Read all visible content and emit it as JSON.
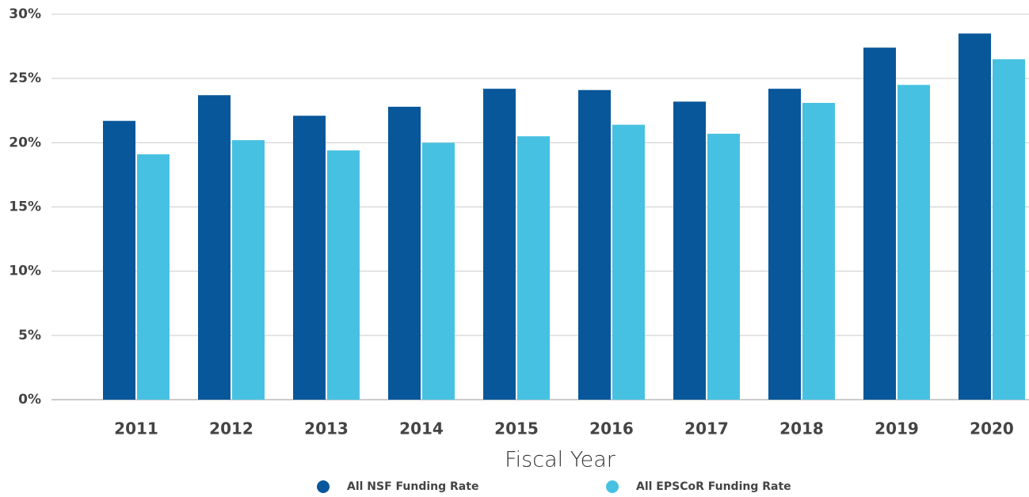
{
  "chart_data": {
    "type": "bar",
    "categories": [
      "2011",
      "2012",
      "2013",
      "2014",
      "2015",
      "2016",
      "2017",
      "2018",
      "2019",
      "2020"
    ],
    "series": [
      {
        "name": "All NSF Funding Rate",
        "color": "#08579a",
        "values": [
          21.7,
          23.7,
          22.1,
          22.8,
          24.2,
          24.1,
          23.2,
          24.2,
          27.4,
          28.5
        ]
      },
      {
        "name": "All EPSCoR Funding Rate",
        "color": "#47c1e1",
        "values": [
          19.1,
          20.2,
          19.4,
          20.0,
          20.5,
          21.4,
          20.7,
          23.1,
          24.5,
          26.5
        ]
      }
    ],
    "x_label": "Fiscal Year",
    "ylim": [
      0,
      30
    ],
    "yticks": [
      {
        "value": 0,
        "label": "0%"
      },
      {
        "value": 5,
        "label": "5%"
      },
      {
        "value": 10,
        "label": "10%"
      },
      {
        "value": 15,
        "label": "15%"
      },
      {
        "value": 20,
        "label": "20%"
      },
      {
        "value": 25,
        "label": "25%"
      },
      {
        "value": 30,
        "label": "30%"
      }
    ],
    "grid": true,
    "legend": "bottom"
  }
}
